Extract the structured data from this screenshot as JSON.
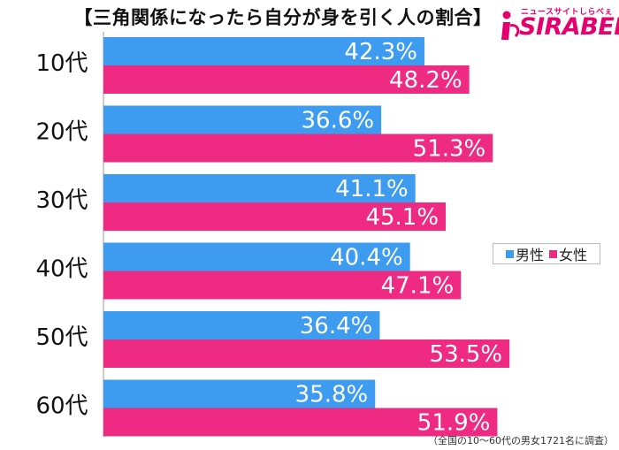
{
  "title": "【三角関係になったら自分が身を引く人の割合】",
  "logo": {
    "tagline": "ニュースサイトしらべぇ",
    "brand": "SIRABEE"
  },
  "footnote": "（全国の10〜60代の男女1721名に調査）",
  "chart_data": {
    "type": "bar",
    "orientation": "horizontal",
    "categories": [
      "10代",
      "20代",
      "30代",
      "40代",
      "50代",
      "60代"
    ],
    "series": [
      {
        "name": "男性",
        "color": "#3d9cf0",
        "values": [
          42.3,
          36.6,
          41.1,
          40.4,
          36.4,
          35.8
        ],
        "labels": [
          "42.3%",
          "36.6%",
          "41.1%",
          "40.4%",
          "36.4%",
          "35.8%"
        ]
      },
      {
        "name": "女性",
        "color": "#ee2a82",
        "values": [
          48.2,
          51.3,
          45.1,
          47.1,
          53.5,
          51.9
        ],
        "labels": [
          "48.2%",
          "51.3%",
          "45.1%",
          "47.1%",
          "53.5%",
          "51.9%"
        ]
      }
    ],
    "xlim": [
      0,
      67
    ],
    "legend": "right-middle"
  }
}
